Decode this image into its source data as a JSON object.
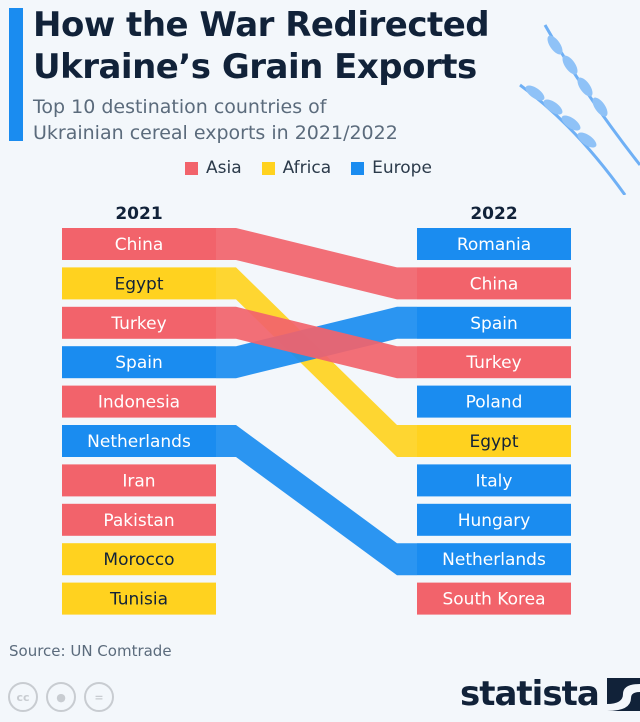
{
  "header": {
    "title_line1": "How the War Redirected",
    "title_line2": "Ukraine’s Grain Exports",
    "subtitle_line1": "Top 10 destination countries of",
    "subtitle_line2": "Ukrainian cereal exports in 2021/2022"
  },
  "legend": [
    {
      "label": "Asia",
      "color": "#f2636b"
    },
    {
      "label": "Africa",
      "color": "#ffd21f"
    },
    {
      "label": "Europe",
      "color": "#1a8cf0"
    }
  ],
  "chart_data": {
    "type": "slope",
    "columns": [
      "2021",
      "2022"
    ],
    "regions_colors": {
      "Asia": "#f2636b",
      "Africa": "#ffd21f",
      "Europe": "#1a8cf0"
    },
    "left": [
      {
        "country": "China",
        "region": "Asia"
      },
      {
        "country": "Egypt",
        "region": "Africa"
      },
      {
        "country": "Turkey",
        "region": "Asia"
      },
      {
        "country": "Spain",
        "region": "Europe"
      },
      {
        "country": "Indonesia",
        "region": "Asia"
      },
      {
        "country": "Netherlands",
        "region": "Europe"
      },
      {
        "country": "Iran",
        "region": "Asia"
      },
      {
        "country": "Pakistan",
        "region": "Asia"
      },
      {
        "country": "Morocco",
        "region": "Africa"
      },
      {
        "country": "Tunisia",
        "region": "Africa"
      }
    ],
    "right": [
      {
        "country": "Romania",
        "region": "Europe"
      },
      {
        "country": "China",
        "region": "Asia"
      },
      {
        "country": "Spain",
        "region": "Europe"
      },
      {
        "country": "Turkey",
        "region": "Asia"
      },
      {
        "country": "Poland",
        "region": "Europe"
      },
      {
        "country": "Egypt",
        "region": "Africa"
      },
      {
        "country": "Italy",
        "region": "Europe"
      },
      {
        "country": "Hungary",
        "region": "Europe"
      },
      {
        "country": "Netherlands",
        "region": "Europe"
      },
      {
        "country": "South Korea",
        "region": "Asia"
      }
    ],
    "flows": [
      {
        "country": "China",
        "rank_2021": 1,
        "rank_2022": 2
      },
      {
        "country": "Egypt",
        "rank_2021": 2,
        "rank_2022": 6
      },
      {
        "country": "Spain",
        "rank_2021": 4,
        "rank_2022": 3
      },
      {
        "country": "Turkey",
        "rank_2021": 3,
        "rank_2022": 4
      },
      {
        "country": "Netherlands",
        "rank_2021": 6,
        "rank_2022": 9
      }
    ]
  },
  "footer": {
    "source": "Source: UN Comtrade",
    "license_icons": [
      "cc-icon",
      "attribution-icon",
      "no-derivatives-icon"
    ],
    "cc_text": "cc",
    "brand": "statista"
  }
}
